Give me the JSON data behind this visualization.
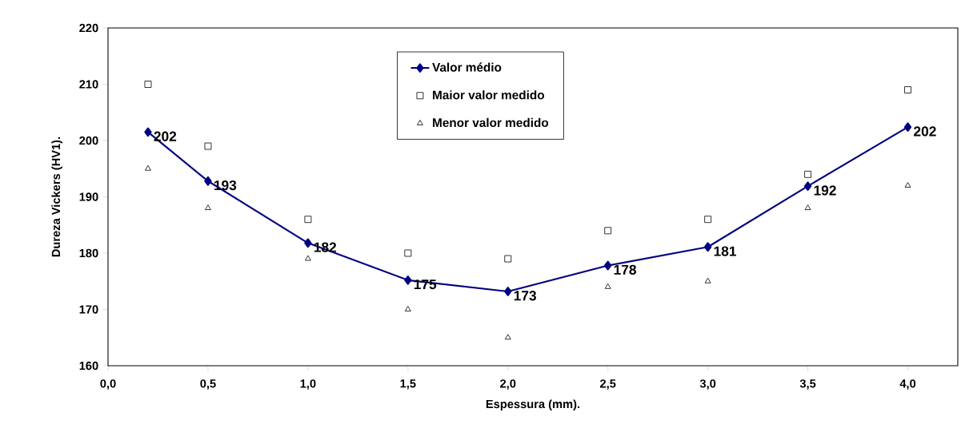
{
  "chart_data": {
    "type": "line",
    "xlabel": "Espessura (mm).",
    "ylabel": "Dureza Vickers (HV1).",
    "x": [
      0.2,
      0.5,
      1.0,
      1.5,
      2.0,
      2.5,
      3.0,
      3.5,
      4.0
    ],
    "series": [
      {
        "name": "Valor médio",
        "color": "#000080",
        "marker": "diamond",
        "values": [
          201.5,
          192.8,
          181.8,
          175.2,
          173.2,
          177.8,
          181.1,
          191.9,
          202.4
        ],
        "value_labels": [
          "202",
          "193",
          "182",
          "175",
          "173",
          "178",
          "181",
          "192",
          "202"
        ]
      },
      {
        "name": "Maior valor medido",
        "type": "scatter",
        "color": "#000000",
        "marker": "square",
        "values": [
          210,
          199,
          186,
          180,
          179,
          184,
          186,
          194,
          209
        ]
      },
      {
        "name": "Menor valor medido",
        "type": "scatter",
        "color": "#000000",
        "marker": "triangle",
        "values": [
          195,
          188,
          179,
          170,
          165,
          174,
          175,
          188,
          192
        ]
      }
    ],
    "xlim": [
      0,
      4.25
    ],
    "ylim": [
      160,
      220
    ],
    "xticks": [
      {
        "value": 0,
        "label": "0,0"
      },
      {
        "value": 0.5,
        "label": "0,5"
      },
      {
        "value": 1,
        "label": "1,0"
      },
      {
        "value": 1.5,
        "label": "1,5"
      },
      {
        "value": 2,
        "label": "2,0"
      },
      {
        "value": 2.5,
        "label": "2,5"
      },
      {
        "value": 3,
        "label": "3,0"
      },
      {
        "value": 3.5,
        "label": "3,5"
      },
      {
        "value": 4,
        "label": "4,0"
      }
    ],
    "yticks": [
      160,
      170,
      180,
      190,
      200,
      210,
      220
    ],
    "grid": false,
    "legend": "top"
  }
}
